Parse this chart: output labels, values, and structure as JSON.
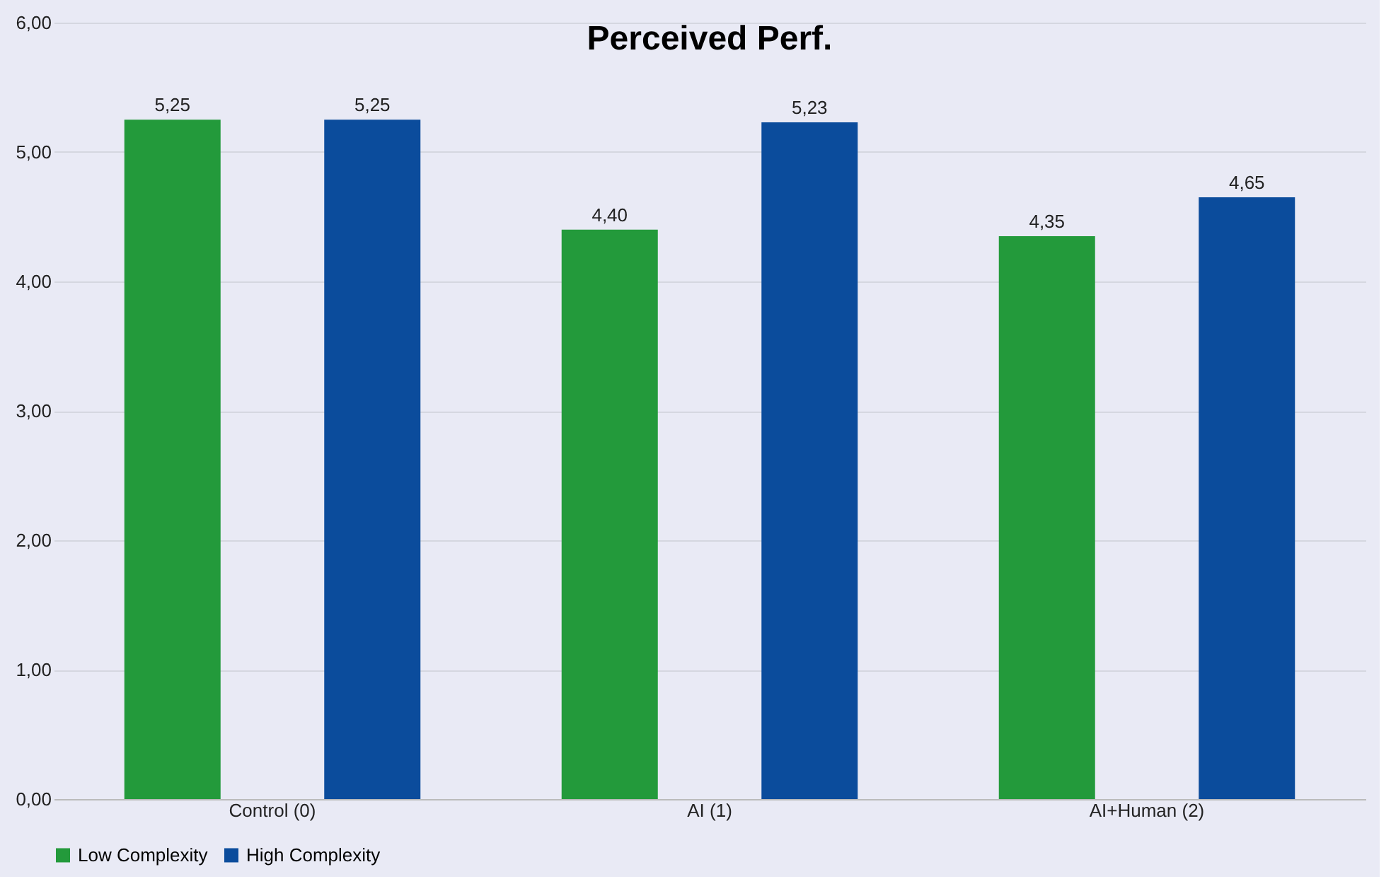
{
  "chart_data": {
    "type": "bar",
    "title": "Perceived Perf.",
    "categories": [
      "Control (0)",
      "AI (1)",
      "AI+Human (2)"
    ],
    "series": [
      {
        "name": "Low Complexity",
        "color": "#239a3b",
        "values": [
          5.25,
          4.4,
          4.35
        ],
        "value_labels": [
          "5,25",
          "4,40",
          "4,35"
        ]
      },
      {
        "name": "High Complexity",
        "color": "#0b4c9c",
        "values": [
          5.25,
          5.23,
          4.65
        ],
        "value_labels": [
          "5,25",
          "5,23",
          "4,65"
        ]
      }
    ],
    "ylim": [
      0,
      6
    ],
    "yticks": [
      {
        "value": 0,
        "label": "0,00"
      },
      {
        "value": 1,
        "label": "1,00"
      },
      {
        "value": 2,
        "label": "2,00"
      },
      {
        "value": 3,
        "label": "3,00"
      },
      {
        "value": 4,
        "label": "4,00"
      },
      {
        "value": 5,
        "label": "5,00"
      },
      {
        "value": 6,
        "label": "6,00"
      }
    ],
    "grid": "y",
    "legend": "bottom"
  }
}
